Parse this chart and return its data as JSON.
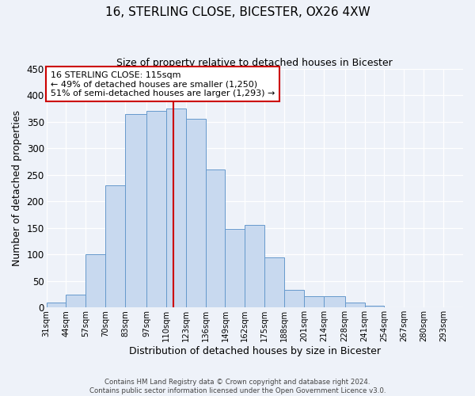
{
  "title": "16, STERLING CLOSE, BICESTER, OX26 4XW",
  "subtitle": "Size of property relative to detached houses in Bicester",
  "xlabel": "Distribution of detached houses by size in Bicester",
  "ylabel": "Number of detached properties",
  "bin_labels": [
    "31sqm",
    "44sqm",
    "57sqm",
    "70sqm",
    "83sqm",
    "97sqm",
    "110sqm",
    "123sqm",
    "136sqm",
    "149sqm",
    "162sqm",
    "175sqm",
    "188sqm",
    "201sqm",
    "214sqm",
    "228sqm",
    "241sqm",
    "254sqm",
    "267sqm",
    "280sqm",
    "293sqm"
  ],
  "bar_heights": [
    10,
    25,
    100,
    230,
    365,
    370,
    375,
    355,
    260,
    148,
    155,
    95,
    33,
    21,
    21,
    10,
    3,
    1,
    0,
    0
  ],
  "bar_color": "#c8d9ef",
  "bar_edge_color": "#6699cc",
  "ylim": [
    0,
    450
  ],
  "yticks": [
    0,
    50,
    100,
    150,
    200,
    250,
    300,
    350,
    400,
    450
  ],
  "vline_color": "#cc0000",
  "annotation_title": "16 STERLING CLOSE: 115sqm",
  "annotation_line1": "← 49% of detached houses are smaller (1,250)",
  "annotation_line2": "51% of semi-detached houses are larger (1,293) →",
  "annotation_box_color": "#ffffff",
  "annotation_box_edge": "#cc0000",
  "footer_line1": "Contains HM Land Registry data © Crown copyright and database right 2024.",
  "footer_line2": "Contains public sector information licensed under the Open Government Licence v3.0.",
  "background_color": "#eef2f9",
  "plot_bg_color": "#eef2f9",
  "bin_edges": [
    31,
    44,
    57,
    70,
    83,
    97,
    110,
    123,
    136,
    149,
    162,
    175,
    188,
    201,
    214,
    228,
    241,
    254,
    267,
    280,
    293
  ]
}
